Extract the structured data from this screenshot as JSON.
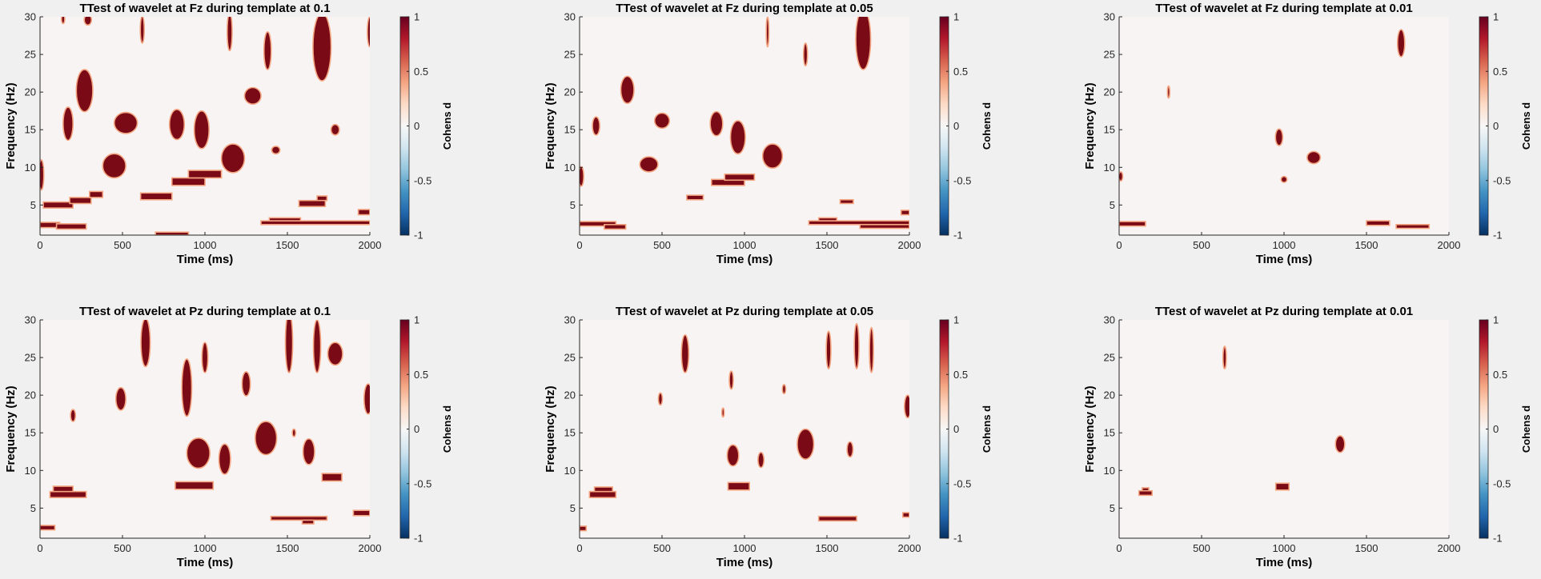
{
  "figure": {
    "background": "#f0f0f0"
  },
  "palette": {
    "plot_bg": "#f7f4f3",
    "blob_fill": "#7a0a16",
    "blob_edge": "#f4a582",
    "axis": "#262626",
    "colorbar_stops": [
      "#053061",
      "#2166ac",
      "#4393c3",
      "#92c5de",
      "#d1e5f0",
      "#f7f7f7",
      "#fddbc7",
      "#f4a582",
      "#d6604d",
      "#b2182b",
      "#67001f"
    ]
  },
  "chart_data": [
    {
      "type": "heatmap",
      "title": "TTest of wavelet at Fz during template at 0.1",
      "xlabel": "Time (ms)",
      "ylabel": "Frequency (Hz)",
      "xlim": [
        0,
        2000
      ],
      "ylim": [
        1,
        30
      ],
      "xticks": [
        "0",
        "500",
        "1000",
        "1500",
        "2000"
      ],
      "yticks": [
        "5",
        "10",
        "15",
        "20",
        "25",
        "30"
      ],
      "colorbar": {
        "label": "Cohens d",
        "range": [
          -1,
          1
        ],
        "ticks": [
          "1",
          "0.5",
          "0",
          "-0.5",
          "-1"
        ]
      },
      "blobs": [
        {
          "t": 170,
          "f": 15.8,
          "rt": 30,
          "rf": 2.2
        },
        {
          "t": 270,
          "f": 20.2,
          "rt": 50,
          "rf": 2.8
        },
        {
          "t": 140,
          "f": 29.7,
          "rt": 10,
          "rf": 0.6
        },
        {
          "t": 290,
          "f": 29.6,
          "rt": 22,
          "rf": 0.7
        },
        {
          "t": 620,
          "f": 28.3,
          "rt": 12,
          "rf": 1.8
        },
        {
          "t": 1150,
          "f": 28,
          "rt": 15,
          "rf": 2.5
        },
        {
          "t": 1380,
          "f": 25.5,
          "rt": 22,
          "rf": 2.5
        },
        {
          "t": 1710,
          "f": 26,
          "rt": 55,
          "rf": 4.5
        },
        {
          "t": 2000,
          "f": 28,
          "rt": 15,
          "rf": 2
        },
        {
          "t": 1290,
          "f": 19.5,
          "rt": 50,
          "rf": 1.1
        },
        {
          "t": 520,
          "f": 15.9,
          "rt": 70,
          "rf": 1.4
        },
        {
          "t": 830,
          "f": 15.7,
          "rt": 45,
          "rf": 2
        },
        {
          "t": 980,
          "f": 15,
          "rt": 45,
          "rf": 2.5
        },
        {
          "t": 1170,
          "f": 11.2,
          "rt": 70,
          "rf": 1.9
        },
        {
          "t": 450,
          "f": 10.2,
          "rt": 70,
          "rf": 1.6
        },
        {
          "t": 8,
          "f": 9,
          "rt": 15,
          "rf": 2
        },
        {
          "t": 1790,
          "f": 15,
          "rt": 25,
          "rf": 0.7
        },
        {
          "t": 1430,
          "f": 12.3,
          "rt": 25,
          "rf": 0.5
        }
      ],
      "bands": [
        {
          "t0": 0,
          "t1": 120,
          "f0": 2,
          "f1": 2.7
        },
        {
          "t0": 100,
          "t1": 280,
          "f0": 1.8,
          "f1": 2.5
        },
        {
          "t0": 1340,
          "t1": 2000,
          "f0": 2.4,
          "f1": 2.9
        },
        {
          "t0": 1390,
          "t1": 1580,
          "f0": 2.9,
          "f1": 3.3
        },
        {
          "t0": 700,
          "t1": 900,
          "f0": 1,
          "f1": 1.4
        },
        {
          "t0": 20,
          "t1": 200,
          "f0": 4.6,
          "f1": 5.4
        },
        {
          "t0": 180,
          "t1": 310,
          "f0": 5.2,
          "f1": 6
        },
        {
          "t0": 300,
          "t1": 380,
          "f0": 6,
          "f1": 6.8
        },
        {
          "t0": 610,
          "t1": 800,
          "f0": 5.7,
          "f1": 6.6
        },
        {
          "t0": 800,
          "t1": 1000,
          "f0": 7.6,
          "f1": 8.6
        },
        {
          "t0": 900,
          "t1": 1100,
          "f0": 8.6,
          "f1": 9.6
        },
        {
          "t0": 1570,
          "t1": 1730,
          "f0": 4.8,
          "f1": 5.6
        },
        {
          "t0": 1680,
          "t1": 1740,
          "f0": 5.6,
          "f1": 6.2
        },
        {
          "t0": 1930,
          "t1": 2000,
          "f0": 3.7,
          "f1": 4.4
        }
      ]
    },
    {
      "type": "heatmap",
      "title": "TTest of wavelet at Fz during template at 0.05",
      "xlabel": "Time (ms)",
      "ylabel": "Frequency (Hz)",
      "xlim": [
        0,
        2000
      ],
      "ylim": [
        1,
        30
      ],
      "xticks": [
        "0",
        "500",
        "1000",
        "1500",
        "2000"
      ],
      "yticks": [
        "5",
        "10",
        "15",
        "20",
        "25",
        "30"
      ],
      "colorbar": {
        "label": "Cohens d",
        "range": [
          -1,
          1
        ],
        "ticks": [
          "1",
          "0.5",
          "0",
          "-0.5",
          "-1"
        ]
      },
      "blobs": [
        {
          "t": 100,
          "f": 15.5,
          "rt": 22,
          "rf": 1.2
        },
        {
          "t": 290,
          "f": 20.3,
          "rt": 40,
          "rf": 1.8
        },
        {
          "t": 500,
          "f": 16.2,
          "rt": 45,
          "rf": 1
        },
        {
          "t": 830,
          "f": 15.8,
          "rt": 38,
          "rf": 1.6
        },
        {
          "t": 960,
          "f": 14,
          "rt": 45,
          "rf": 2.2
        },
        {
          "t": 1170,
          "f": 11.5,
          "rt": 60,
          "rf": 1.6
        },
        {
          "t": 420,
          "f": 10.4,
          "rt": 55,
          "rf": 1
        },
        {
          "t": 10,
          "f": 8.8,
          "rt": 15,
          "rf": 1.3
        },
        {
          "t": 1140,
          "f": 28,
          "rt": 8,
          "rf": 2
        },
        {
          "t": 1370,
          "f": 25,
          "rt": 12,
          "rf": 1.5
        },
        {
          "t": 1720,
          "f": 27,
          "rt": 45,
          "rf": 4
        }
      ],
      "bands": [
        {
          "t0": 0,
          "t1": 220,
          "f0": 2.2,
          "f1": 2.8
        },
        {
          "t0": 150,
          "t1": 280,
          "f0": 1.8,
          "f1": 2.4
        },
        {
          "t0": 650,
          "t1": 750,
          "f0": 5.7,
          "f1": 6.3
        },
        {
          "t0": 800,
          "t1": 1000,
          "f0": 7.6,
          "f1": 8.4
        },
        {
          "t0": 880,
          "t1": 1060,
          "f0": 8.3,
          "f1": 9.1
        },
        {
          "t0": 1390,
          "t1": 2000,
          "f0": 2.4,
          "f1": 2.9
        },
        {
          "t0": 1450,
          "t1": 1560,
          "f0": 2.9,
          "f1": 3.3
        },
        {
          "t0": 1700,
          "t1": 2000,
          "f0": 1.9,
          "f1": 2.4
        },
        {
          "t0": 1580,
          "t1": 1660,
          "f0": 5.2,
          "f1": 5.7
        },
        {
          "t0": 1950,
          "t1": 2000,
          "f0": 3.7,
          "f1": 4.3
        }
      ]
    },
    {
      "type": "heatmap",
      "title": "TTest of wavelet at Fz during template at 0.01",
      "xlabel": "Time (ms)",
      "ylabel": "Frequency (Hz)",
      "xlim": [
        0,
        2000
      ],
      "ylim": [
        1,
        30
      ],
      "xticks": [
        "0",
        "500",
        "1000",
        "1500",
        "2000"
      ],
      "yticks": [
        "5",
        "10",
        "15",
        "20",
        "25",
        "30"
      ],
      "colorbar": {
        "label": "Cohens d",
        "range": [
          -1,
          1
        ],
        "ticks": [
          "1",
          "0.5",
          "0",
          "-0.5",
          "-1"
        ]
      },
      "blobs": [
        {
          "t": 1710,
          "f": 26.5,
          "rt": 22,
          "rf": 1.8
        },
        {
          "t": 300,
          "f": 20,
          "rt": 7,
          "rf": 0.8
        },
        {
          "t": 970,
          "f": 14,
          "rt": 22,
          "rf": 1.1
        },
        {
          "t": 1180,
          "f": 11.3,
          "rt": 40,
          "rf": 0.8
        },
        {
          "t": 10,
          "f": 8.8,
          "rt": 12,
          "rf": 0.6
        },
        {
          "t": 1000,
          "f": 8.4,
          "rt": 18,
          "rf": 0.4
        }
      ],
      "bands": [
        {
          "t0": 0,
          "t1": 160,
          "f0": 2.2,
          "f1": 2.8
        },
        {
          "t0": 1500,
          "t1": 1640,
          "f0": 2.3,
          "f1": 2.9
        },
        {
          "t0": 1680,
          "t1": 1880,
          "f0": 1.9,
          "f1": 2.4
        }
      ]
    },
    {
      "type": "heatmap",
      "title": "TTest of wavelet at Pz during template at 0.1",
      "xlabel": "Time (ms)",
      "ylabel": "Frequency (Hz)",
      "xlim": [
        0,
        2000
      ],
      "ylim": [
        1,
        30
      ],
      "xticks": [
        "0",
        "500",
        "1000",
        "1500",
        "2000"
      ],
      "yticks": [
        "5",
        "10",
        "15",
        "20",
        "25",
        "30"
      ],
      "colorbar": {
        "label": "Cohens d",
        "range": [
          -1,
          1
        ],
        "ticks": [
          "1",
          "0.5",
          "0",
          "-0.5",
          "-1"
        ]
      },
      "blobs": [
        {
          "t": 640,
          "f": 27,
          "rt": 28,
          "rf": 3.2
        },
        {
          "t": 1000,
          "f": 25,
          "rt": 18,
          "rf": 2
        },
        {
          "t": 890,
          "f": 21,
          "rt": 30,
          "rf": 3.8
        },
        {
          "t": 1250,
          "f": 21.5,
          "rt": 25,
          "rf": 1.6
        },
        {
          "t": 490,
          "f": 19.5,
          "rt": 30,
          "rf": 1.5
        },
        {
          "t": 1510,
          "f": 27,
          "rt": 22,
          "rf": 4
        },
        {
          "t": 1680,
          "f": 26.5,
          "rt": 22,
          "rf": 3.5
        },
        {
          "t": 1790,
          "f": 25.5,
          "rt": 45,
          "rf": 1.5
        },
        {
          "t": 1990,
          "f": 19.5,
          "rt": 25,
          "rf": 2
        },
        {
          "t": 200,
          "f": 17.3,
          "rt": 15,
          "rf": 0.8
        },
        {
          "t": 1370,
          "f": 14.3,
          "rt": 65,
          "rf": 2.2
        },
        {
          "t": 960,
          "f": 12.3,
          "rt": 70,
          "rf": 2
        },
        {
          "t": 1120,
          "f": 11.5,
          "rt": 35,
          "rf": 2
        },
        {
          "t": 1630,
          "f": 12.5,
          "rt": 35,
          "rf": 1.7
        },
        {
          "t": 1540,
          "f": 15,
          "rt": 10,
          "rf": 0.5
        }
      ],
      "bands": [
        {
          "t0": 60,
          "t1": 280,
          "f0": 6.4,
          "f1": 7.2
        },
        {
          "t0": 80,
          "t1": 200,
          "f0": 7.2,
          "f1": 7.9
        },
        {
          "t0": 820,
          "t1": 1050,
          "f0": 7.5,
          "f1": 8.5
        },
        {
          "t0": 1710,
          "t1": 1830,
          "f0": 8.6,
          "f1": 9.6
        },
        {
          "t0": 0,
          "t1": 90,
          "f0": 2.1,
          "f1": 2.7
        },
        {
          "t0": 1400,
          "t1": 1740,
          "f0": 3.4,
          "f1": 3.9
        },
        {
          "t0": 1590,
          "t1": 1660,
          "f0": 2.9,
          "f1": 3.4
        },
        {
          "t0": 1900,
          "t1": 2000,
          "f0": 4,
          "f1": 4.7
        }
      ]
    },
    {
      "type": "heatmap",
      "title": "TTest of wavelet at Pz during template at 0.05",
      "xlabel": "Time (ms)",
      "ylabel": "Frequency (Hz)",
      "xlim": [
        0,
        2000
      ],
      "ylim": [
        1,
        30
      ],
      "xticks": [
        "0",
        "500",
        "1000",
        "1500",
        "2000"
      ],
      "yticks": [
        "5",
        "10",
        "15",
        "20",
        "25",
        "30"
      ],
      "colorbar": {
        "label": "Cohens d",
        "range": [
          -1,
          1
        ],
        "ticks": [
          "1",
          "0.5",
          "0",
          "-0.5",
          "-1"
        ]
      },
      "blobs": [
        {
          "t": 640,
          "f": 25.5,
          "rt": 22,
          "rf": 2.5
        },
        {
          "t": 920,
          "f": 22,
          "rt": 12,
          "rf": 1.2
        },
        {
          "t": 490,
          "f": 19.5,
          "rt": 12,
          "rf": 0.8
        },
        {
          "t": 1240,
          "f": 20.8,
          "rt": 10,
          "rf": 0.6
        },
        {
          "t": 1510,
          "f": 26,
          "rt": 14,
          "rf": 2.5
        },
        {
          "t": 1680,
          "f": 26.5,
          "rt": 14,
          "rf": 3
        },
        {
          "t": 1770,
          "f": 26,
          "rt": 12,
          "rf": 3
        },
        {
          "t": 1990,
          "f": 18.5,
          "rt": 20,
          "rf": 1.5
        },
        {
          "t": 930,
          "f": 12,
          "rt": 35,
          "rf": 1.4
        },
        {
          "t": 1100,
          "f": 11.4,
          "rt": 18,
          "rf": 1
        },
        {
          "t": 1370,
          "f": 13.5,
          "rt": 50,
          "rf": 2
        },
        {
          "t": 1640,
          "f": 12.8,
          "rt": 18,
          "rf": 1
        },
        {
          "t": 870,
          "f": 17.7,
          "rt": 7,
          "rf": 0.6
        }
      ],
      "bands": [
        {
          "t0": 60,
          "t1": 220,
          "f0": 6.4,
          "f1": 7.2
        },
        {
          "t0": 90,
          "t1": 200,
          "f0": 7.2,
          "f1": 7.8
        },
        {
          "t0": 900,
          "t1": 1030,
          "f0": 7.4,
          "f1": 8.4
        },
        {
          "t0": 1450,
          "t1": 1680,
          "f0": 3.3,
          "f1": 3.9
        },
        {
          "t0": 0,
          "t1": 40,
          "f0": 2,
          "f1": 2.6
        },
        {
          "t0": 1960,
          "t1": 2000,
          "f0": 3.8,
          "f1": 4.4
        }
      ]
    },
    {
      "type": "heatmap",
      "title": "TTest of wavelet at Pz during template at 0.01",
      "xlabel": "Time (ms)",
      "ylabel": "Frequency (Hz)",
      "xlim": [
        0,
        2000
      ],
      "ylim": [
        1,
        30
      ],
      "xticks": [
        "0",
        "500",
        "1000",
        "1500",
        "2000"
      ],
      "yticks": [
        "5",
        "10",
        "15",
        "20",
        "25",
        "30"
      ],
      "colorbar": {
        "label": "Cohens d",
        "range": [
          -1,
          1
        ],
        "ticks": [
          "1",
          "0.5",
          "0",
          "-0.5",
          "-1"
        ]
      },
      "blobs": [
        {
          "t": 640,
          "f": 25,
          "rt": 10,
          "rf": 1.5
        },
        {
          "t": 1340,
          "f": 13.5,
          "rt": 28,
          "rf": 1.1
        }
      ],
      "bands": [
        {
          "t0": 120,
          "t1": 200,
          "f0": 6.7,
          "f1": 7.3
        },
        {
          "t0": 140,
          "t1": 180,
          "f0": 7.3,
          "f1": 7.7
        },
        {
          "t0": 950,
          "t1": 1030,
          "f0": 7.4,
          "f1": 8.3
        }
      ]
    }
  ]
}
